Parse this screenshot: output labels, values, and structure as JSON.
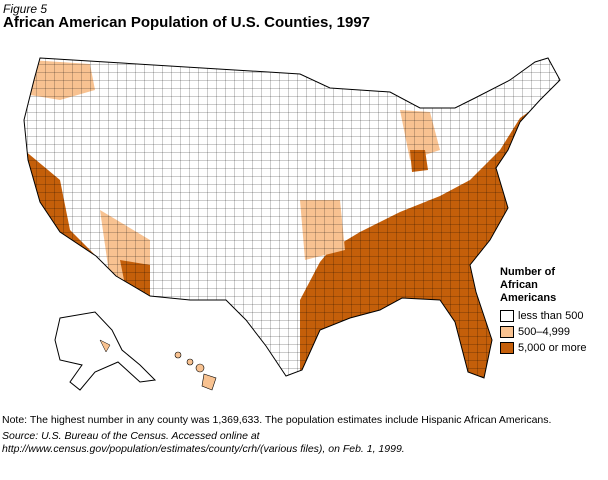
{
  "figure_label": "Figure 5",
  "title": "African American Population of U.S. Counties, 1997",
  "legend": {
    "title": "Number of African Americans",
    "items": [
      {
        "label": "less than 500",
        "color": "#ffffff"
      },
      {
        "label": "500–4,999",
        "color": "#f8c291"
      },
      {
        "label": "5,000 or more",
        "color": "#c45f0a"
      }
    ]
  },
  "note": "Note: The highest number in any county was 1,369,633. The population estimates include Hispanic African Americans.",
  "source": "Source: U.S. Bureau of the Census. Accessed online at http://www.census.gov/population/estimates/county/crh/(various files), on Feb. 1, 1999."
}
